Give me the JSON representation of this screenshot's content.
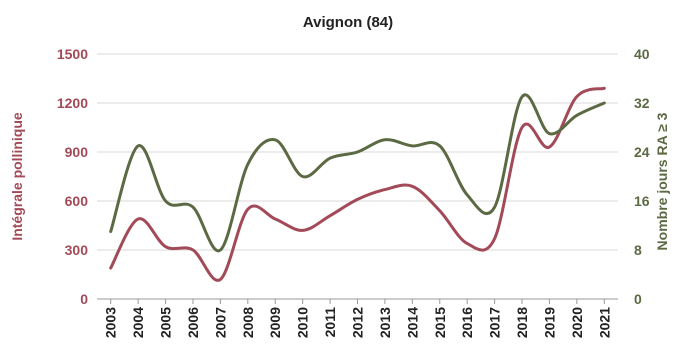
{
  "chart_data": {
    "type": "line",
    "title": "Avignon (84)",
    "categories": [
      "2003",
      "2004",
      "2005",
      "2006",
      "2007",
      "2008",
      "2009",
      "2010",
      "2011",
      "2012",
      "2013",
      "2014",
      "2015",
      "2016",
      "2017",
      "2018",
      "2019",
      "2020",
      "2021"
    ],
    "series": [
      {
        "axis": "left",
        "color": "#a34a58",
        "values": [
          190,
          490,
          320,
          300,
          120,
          550,
          490,
          420,
          510,
          610,
          670,
          690,
          540,
          340,
          370,
          1050,
          930,
          1240,
          1290
        ]
      },
      {
        "axis": "right",
        "color": "#5c6a44",
        "values": [
          11,
          25,
          16,
          15,
          8,
          22,
          26,
          20,
          23,
          24,
          26,
          25,
          25,
          17,
          15,
          33,
          27,
          30,
          32
        ]
      }
    ],
    "y_left": {
      "label": "Intégrale pollinique",
      "ylim": [
        0,
        1500
      ],
      "ticks": [
        0,
        300,
        600,
        900,
        1200,
        1500
      ],
      "tick_labels": [
        "0",
        "300",
        "600",
        "900",
        "1200",
        "1500"
      ],
      "color": "#a34a58"
    },
    "y_right": {
      "label": "Nombre jours  RA ≥ 3",
      "ylim": [
        0,
        40
      ],
      "ticks": [
        0,
        8,
        16,
        24,
        32,
        40
      ],
      "tick_labels": [
        "0",
        "8",
        "16",
        "24",
        "32",
        "40"
      ],
      "color": "#5c6a44"
    },
    "grid": true,
    "legend": "none"
  }
}
